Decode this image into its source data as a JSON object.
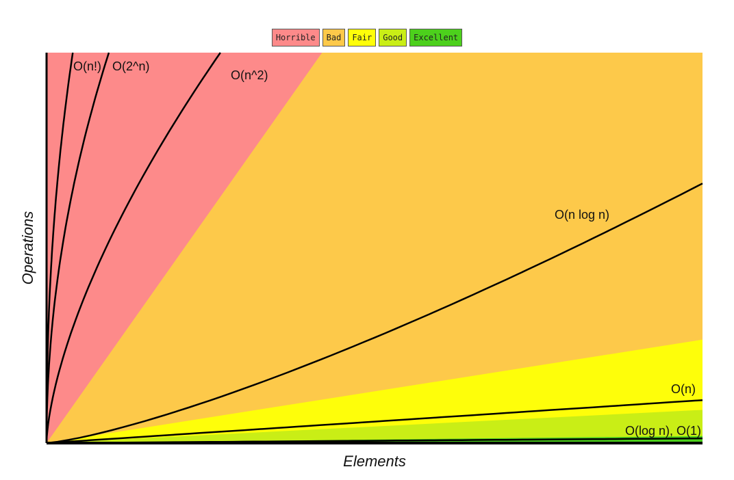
{
  "legend": [
    {
      "label": "Horrible",
      "color": "#fd8a8a"
    },
    {
      "label": "Bad",
      "color": "#fdc94a"
    },
    {
      "label": "Fair",
      "color": "#fefe0a"
    },
    {
      "label": "Good",
      "color": "#c9ee16"
    },
    {
      "label": "Excellent",
      "color": "#4cd01c"
    }
  ],
  "chart_data": {
    "type": "area",
    "xlabel": "Elements",
    "ylabel": "Operations",
    "xlim": [
      0,
      100
    ],
    "ylim": [
      0,
      100
    ],
    "grid": false,
    "legend_position": "top-center",
    "zones": [
      {
        "name": "Horrible",
        "color": "#fd8a8a",
        "top_right": 100
      },
      {
        "name": "Bad",
        "color": "#fdc94a",
        "top_right": 100
      },
      {
        "name": "Fair",
        "color": "#fefe0a",
        "top_right": 26.5
      },
      {
        "name": "Good",
        "color": "#c9ee16",
        "top_right": 8.5
      },
      {
        "name": "Excellent",
        "color": "#4cd01c",
        "top_right": 1.8
      }
    ],
    "curves": [
      {
        "label": "O(n!)",
        "kind": "factorial"
      },
      {
        "label": "O(2^n)",
        "kind": "exponential"
      },
      {
        "label": "O(n^2)",
        "kind": "quadratic"
      },
      {
        "label": "O(n log n)",
        "kind": "nlogn"
      },
      {
        "label": "O(n)",
        "kind": "linear"
      },
      {
        "label": "O(log n), O(1)",
        "kind": "log"
      }
    ]
  }
}
